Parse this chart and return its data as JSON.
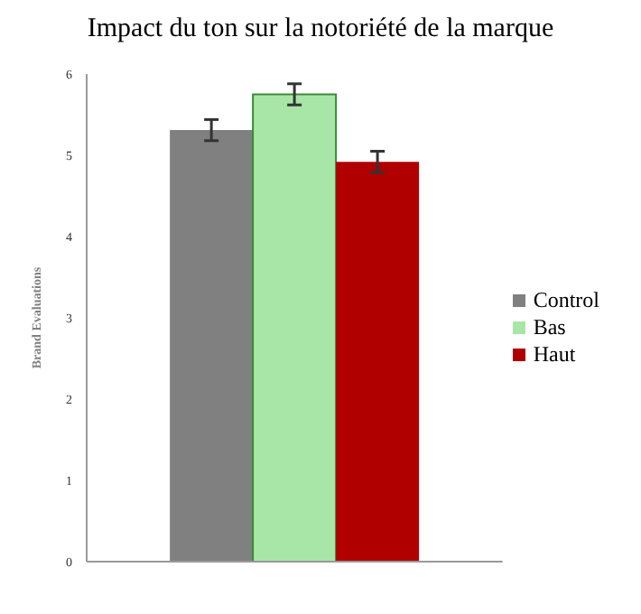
{
  "chart_data": {
    "type": "bar",
    "title": "Impact du ton sur la notoriété de la marque",
    "ylabel": "Brand Evaluations",
    "categories": [
      null
    ],
    "series": [
      {
        "name": "Control",
        "color": "#808080",
        "values": [
          5.31
        ],
        "errors": [
          0.13
        ]
      },
      {
        "name": "Bas",
        "color": "#a8e6a8",
        "values": [
          5.75
        ],
        "errors": [
          0.13
        ]
      },
      {
        "name": "Haut",
        "color": "#b00000",
        "values": [
          4.92
        ],
        "errors": [
          0.13
        ]
      }
    ],
    "ylim": [
      0,
      6
    ],
    "yticks": [
      0,
      1,
      2,
      3,
      4,
      5,
      6
    ],
    "grid": false,
    "legend": "right"
  }
}
